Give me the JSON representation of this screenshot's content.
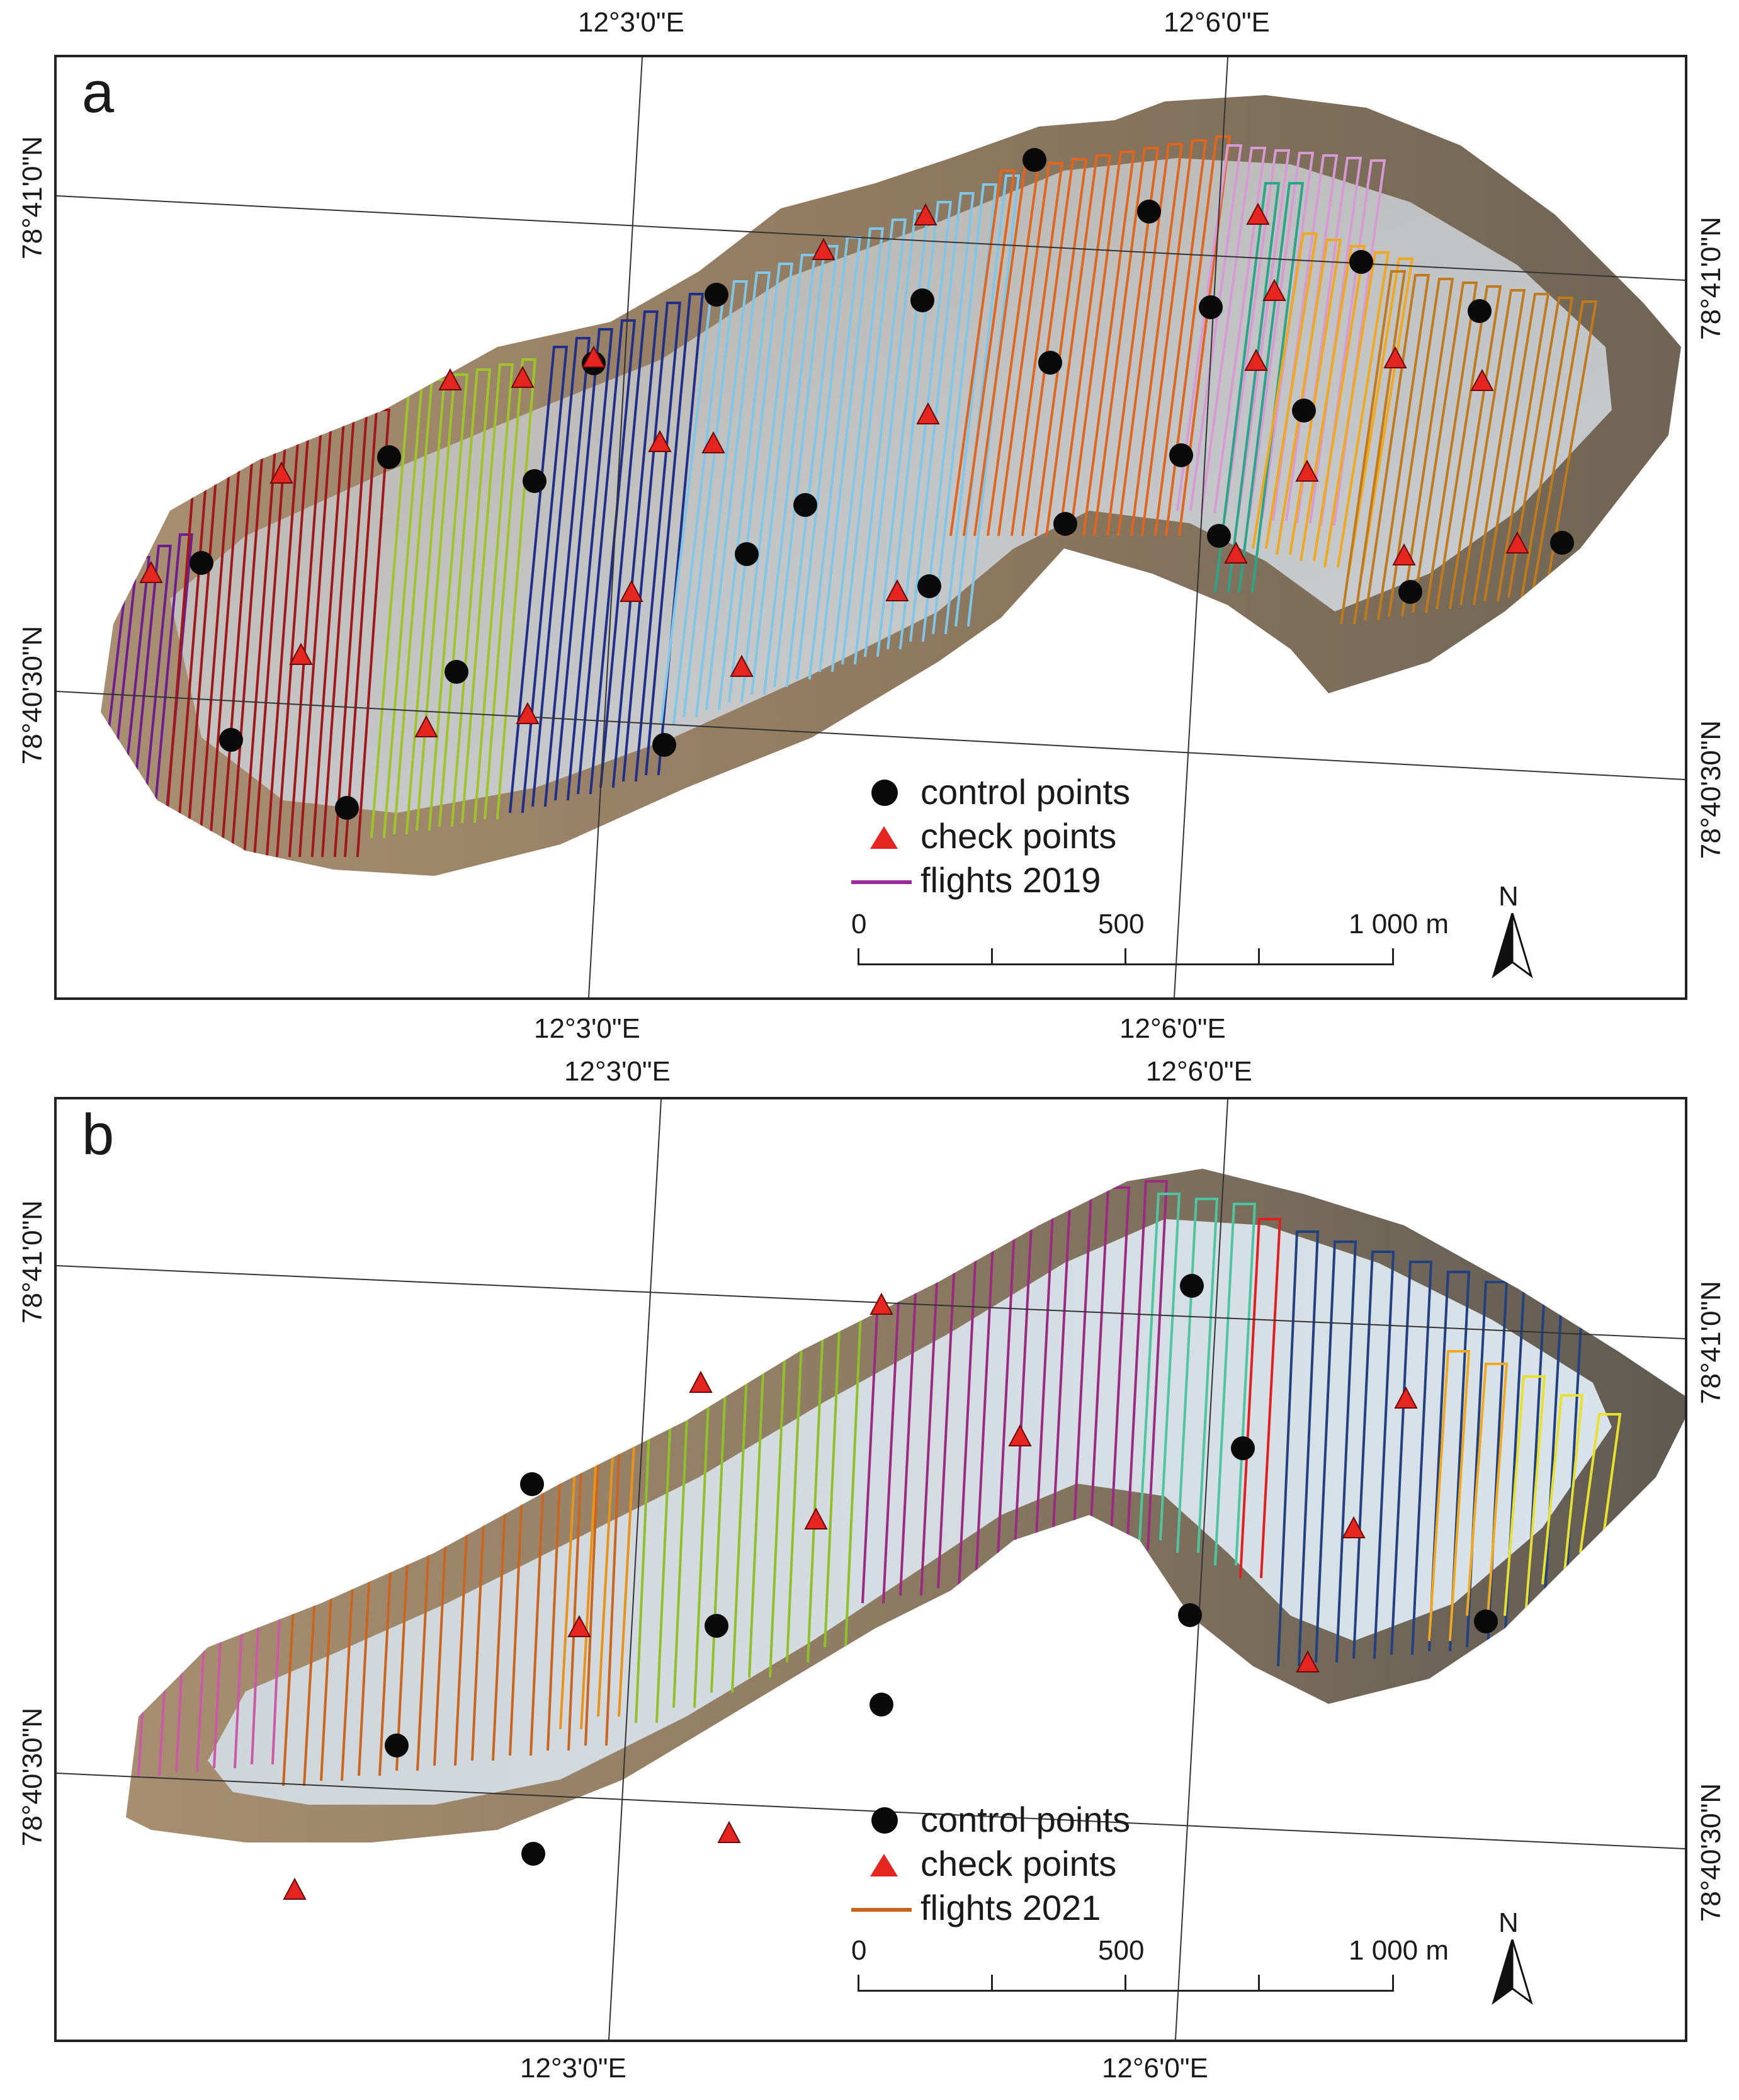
{
  "panels": {
    "a": {
      "letter": "a",
      "lon_left_top": "12°3'0\"E",
      "lon_right_top": "12°6'0\"E",
      "lon_left_bottom": "12°3'0\"E",
      "lon_right_bottom": "12°6'0\"E",
      "lat_upper_left": "78°41'0\"N",
      "lat_lower_left": "78°40'30\"N",
      "lat_upper_right": "78°41'0\"N",
      "lat_lower_right": "78°40'30\"N",
      "legend": {
        "control": "control points",
        "check": "check points",
        "flights": "flights 2019",
        "flights_color": "#9b2a9b"
      },
      "scale": {
        "l0": "0",
        "l1": "500",
        "l2": "1 000 m"
      },
      "north": "N"
    },
    "b": {
      "letter": "b",
      "lon_left_top": "12°3'0\"E",
      "lon_right_top": "12°6'0\"E",
      "lon_left_bottom": "12°3'0\"E",
      "lon_right_bottom": "12°6'0\"E",
      "lat_upper_left": "78°41'0\"N",
      "lat_lower_left": "78°40'30\"N",
      "lat_upper_right": "78°41'0\"N",
      "lat_lower_right": "78°40'30\"N",
      "legend": {
        "control": "control points",
        "check": "check points",
        "flights": "flights 2021",
        "flights_color": "#c9651e"
      },
      "scale": {
        "l0": "0",
        "l1": "500",
        "l2": "1 000 m"
      },
      "north": "N"
    }
  },
  "colors": {
    "control_point": "#0a0a0a",
    "check_point": "#e52520",
    "flights_2019": [
      "#6f1d8f",
      "#a0171c",
      "#9fc42a",
      "#1f2f8a",
      "#7fc6e8",
      "#e0661f",
      "#d89ad4",
      "#2aa58a",
      "#f0a81e",
      "#c07a1c"
    ],
    "flights_2021": [
      "#c85aa6",
      "#c9651e",
      "#e8921a",
      "#8fc02a",
      "#9a2a82",
      "#4fc4a0",
      "#e02020",
      "#23407f",
      "#f0a81e",
      "#e8e02a"
    ]
  }
}
